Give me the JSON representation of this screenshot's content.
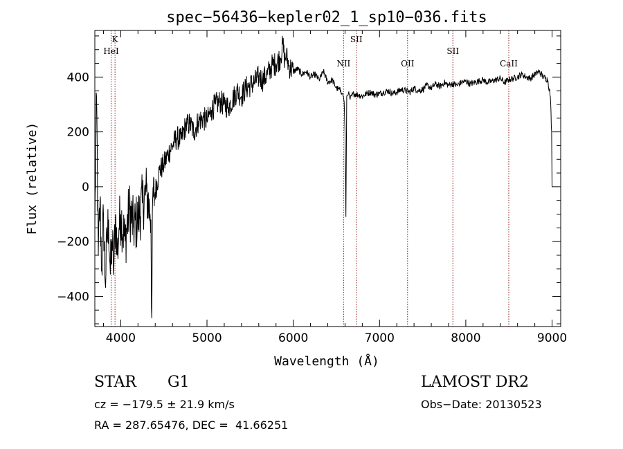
{
  "chart_data": {
    "type": "line",
    "title": "spec−56436−kepler02_1_sp10−036.fits",
    "xlabel": "Wavelength (Å)",
    "ylabel": "Flux (relative)",
    "xlim": [
      3700,
      9100
    ],
    "ylim": [
      -510,
      570
    ],
    "xticks": [
      4000,
      5000,
      6000,
      7000,
      8000,
      9000
    ],
    "yticks": [
      -400,
      -200,
      0,
      200,
      400
    ],
    "xtick_labels": [
      "4000",
      "5000",
      "6000",
      "7000",
      "8000",
      "9000"
    ],
    "ytick_labels": [
      "−400",
      "−200",
      "0",
      "200",
      "400"
    ],
    "grid": false,
    "line_color": "#000000",
    "marker_color": "#8b1a1a",
    "series": [
      {
        "x": [
          3700,
          3720,
          3740,
          3760,
          3780,
          3800,
          3820,
          3840,
          3860,
          3880,
          3900,
          3920,
          3940,
          3960,
          3980,
          4000,
          4050,
          4100,
          4150,
          4200,
          4250,
          4300,
          4340,
          4350,
          4360,
          4370,
          4400,
          4450,
          4500,
          4550,
          4600,
          4650,
          4700,
          4750,
          4800,
          4850,
          4900,
          4950,
          5000,
          5050,
          5100,
          5150,
          5200,
          5250,
          5300,
          5350,
          5400,
          5450,
          5500,
          5550,
          5600,
          5650,
          5700,
          5750,
          5800,
          5850,
          5880,
          5900,
          5920,
          5950,
          6000,
          6050,
          6100,
          6150,
          6200,
          6250,
          6300,
          6350,
          6400,
          6450,
          6500,
          6550,
          6570,
          6580,
          6590,
          6600,
          6610,
          6620,
          6640,
          6660,
          6700,
          6750,
          6800,
          6850,
          6900,
          6950,
          7000,
          7050,
          7100,
          7150,
          7200,
          7250,
          7300,
          7350,
          7400,
          7450,
          7500,
          7550,
          7600,
          7650,
          7700,
          7750,
          7800,
          7850,
          7900,
          7950,
          8000,
          8050,
          8100,
          8150,
          8200,
          8250,
          8300,
          8350,
          8400,
          8450,
          8500,
          8550,
          8600,
          8650,
          8700,
          8750,
          8800,
          8850,
          8900,
          8950,
          8980,
          8995,
          9000,
          9005
        ],
        "y": [
          -150,
          330,
          -250,
          -50,
          -300,
          -100,
          -350,
          -200,
          -120,
          -320,
          -200,
          -300,
          -100,
          -250,
          -150,
          -100,
          -200,
          -80,
          -150,
          -120,
          -60,
          -20,
          -100,
          -120,
          -480,
          -50,
          -20,
          60,
          80,
          120,
          150,
          180,
          170,
          220,
          230,
          200,
          240,
          250,
          240,
          280,
          300,
          310,
          300,
          290,
          320,
          350,
          330,
          360,
          370,
          380,
          400,
          390,
          410,
          440,
          450,
          470,
          520,
          460,
          480,
          440,
          420,
          430,
          410,
          420,
          400,
          410,
          390,
          420,
          380,
          390,
          360,
          350,
          340,
          330,
          310,
          200,
          -110,
          330,
          340,
          320,
          340,
          335,
          330,
          340,
          345,
          335,
          340,
          345,
          350,
          340,
          345,
          355,
          350,
          345,
          360,
          350,
          355,
          370,
          360,
          375,
          365,
          380,
          370,
          375,
          370,
          380,
          385,
          375,
          380,
          385,
          390,
          380,
          385,
          390,
          395,
          380,
          390,
          395,
          400,
          410,
          400,
          395,
          410,
          420,
          400,
          390,
          330,
          200,
          0,
          0
        ]
      }
    ],
    "line_markers": [
      {
        "label": "K",
        "x": 3934,
        "level": 1
      },
      {
        "label": "HeI",
        "x": 3889,
        "level": 2
      },
      {
        "label": "NII",
        "x": 6583,
        "level": 3
      },
      {
        "label": "SII",
        "x": 6731,
        "level": 1
      },
      {
        "label": "OII",
        "x": 7325,
        "level": 3
      },
      {
        "label": "SII",
        "x": 7850,
        "level": 2
      },
      {
        "label": "CaII",
        "x": 8498,
        "level": 3
      }
    ]
  },
  "info": {
    "object_type": "STAR",
    "subclass": "G1",
    "survey": "LAMOST DR2",
    "cz": "cz = −179.5 ± 21.9 km/s",
    "obs_date": "Obs−Date: 20130523",
    "radec": "RA = 287.65476, DEC =  41.66251"
  }
}
